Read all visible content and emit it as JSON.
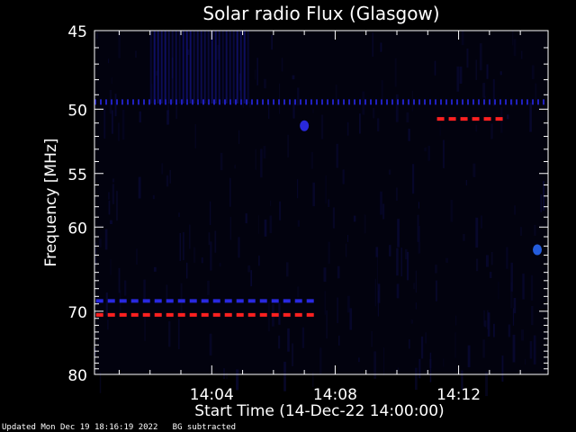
{
  "chart_data": {
    "type": "heatmap",
    "title": "Solar radio Flux (Glasgow)",
    "xlabel": "Start Time (14-Dec-22 14:00:00)",
    "ylabel": "Frequency [MHz]",
    "x_unit": "minutes after 14:00",
    "xlim": [
      0.2,
      14.9
    ],
    "ylim": [
      45,
      80
    ],
    "y_scale": "log",
    "x_ticks": [
      {
        "value": 4,
        "label": "14:04"
      },
      {
        "value": 8,
        "label": "14:08"
      },
      {
        "value": 12,
        "label": "14:12"
      }
    ],
    "y_ticks": [
      {
        "value": 45,
        "label": "45"
      },
      {
        "value": 50,
        "label": "50"
      },
      {
        "value": 55,
        "label": "55"
      },
      {
        "value": 60,
        "label": "60"
      },
      {
        "value": 70,
        "label": "70"
      },
      {
        "value": 80,
        "label": "80"
      }
    ],
    "features": [
      {
        "kind": "dashed-line",
        "color": "#ff2020",
        "x": [
          0.25,
          7.4
        ],
        "y": 70.5
      },
      {
        "kind": "dashed-line",
        "color": "#2828e0",
        "x": [
          0.25,
          7.4
        ],
        "y": 68.6
      },
      {
        "kind": "dashed-line",
        "color": "#ff2020",
        "x": [
          11.3,
          13.5
        ],
        "y": 50.7
      },
      {
        "kind": "dotted-line",
        "color": "#2020c0",
        "x": [
          0.2,
          14.9
        ],
        "y": 49.5
      },
      {
        "kind": "blob",
        "color": "#1818a0",
        "x": [
          2.0,
          5.2
        ],
        "y": [
          45,
          49.6
        ]
      },
      {
        "kind": "spot",
        "color": "#2a6cff",
        "x": 14.55,
        "y": 62.4
      },
      {
        "kind": "spot",
        "color": "#3030ff",
        "x": 7.0,
        "y": 51.2
      }
    ],
    "colors": {
      "background": "#000000",
      "axes": "#ffffff",
      "text": "#ffffff"
    }
  },
  "footer": {
    "updated": "Updated Mon Dec 19 18:16:19 2022",
    "note": "BG subtracted"
  }
}
